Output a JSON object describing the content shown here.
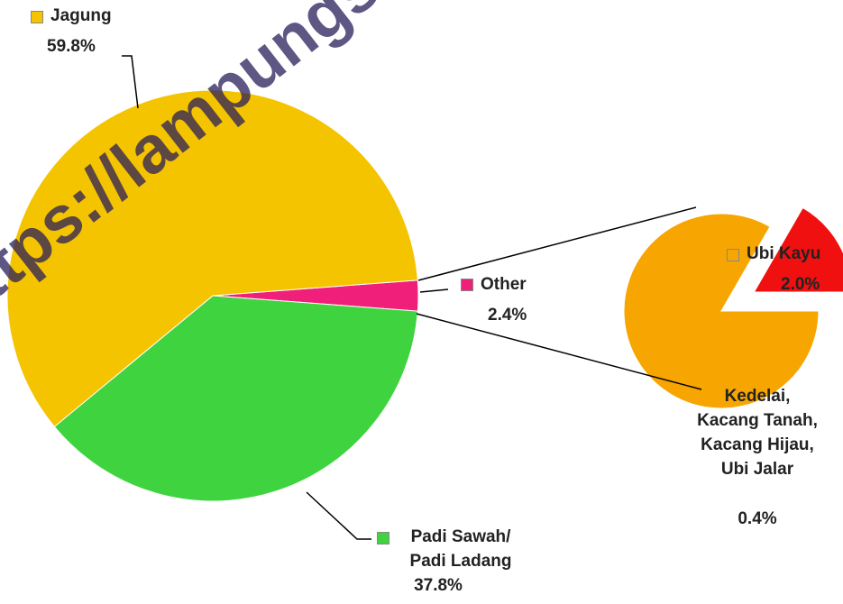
{
  "chart_data": {
    "type": "pie-of-pie",
    "categories": [
      "Jagung",
      "Padi Sawah/\nPadi Ladang",
      "Other"
    ],
    "values": [
      59.8,
      37.8,
      2.4
    ],
    "value_labels": [
      "59.8%",
      "37.8%",
      "2.4%"
    ],
    "colors": [
      "#f5c400",
      "#3fd43f",
      "#f0207a"
    ],
    "secondary": {
      "categories": [
        "Ubi Kayu",
        "Kedelai,\nKacang Tanah,\nKacang Hijau,\nUbi Jalar"
      ],
      "values": [
        2.0,
        0.4
      ],
      "value_labels": [
        "2.0%",
        "0.4%"
      ],
      "colors": [
        "#f7a500",
        "#f01010"
      ]
    },
    "watermark": "https://lampungselatankab.bps.go.id"
  }
}
